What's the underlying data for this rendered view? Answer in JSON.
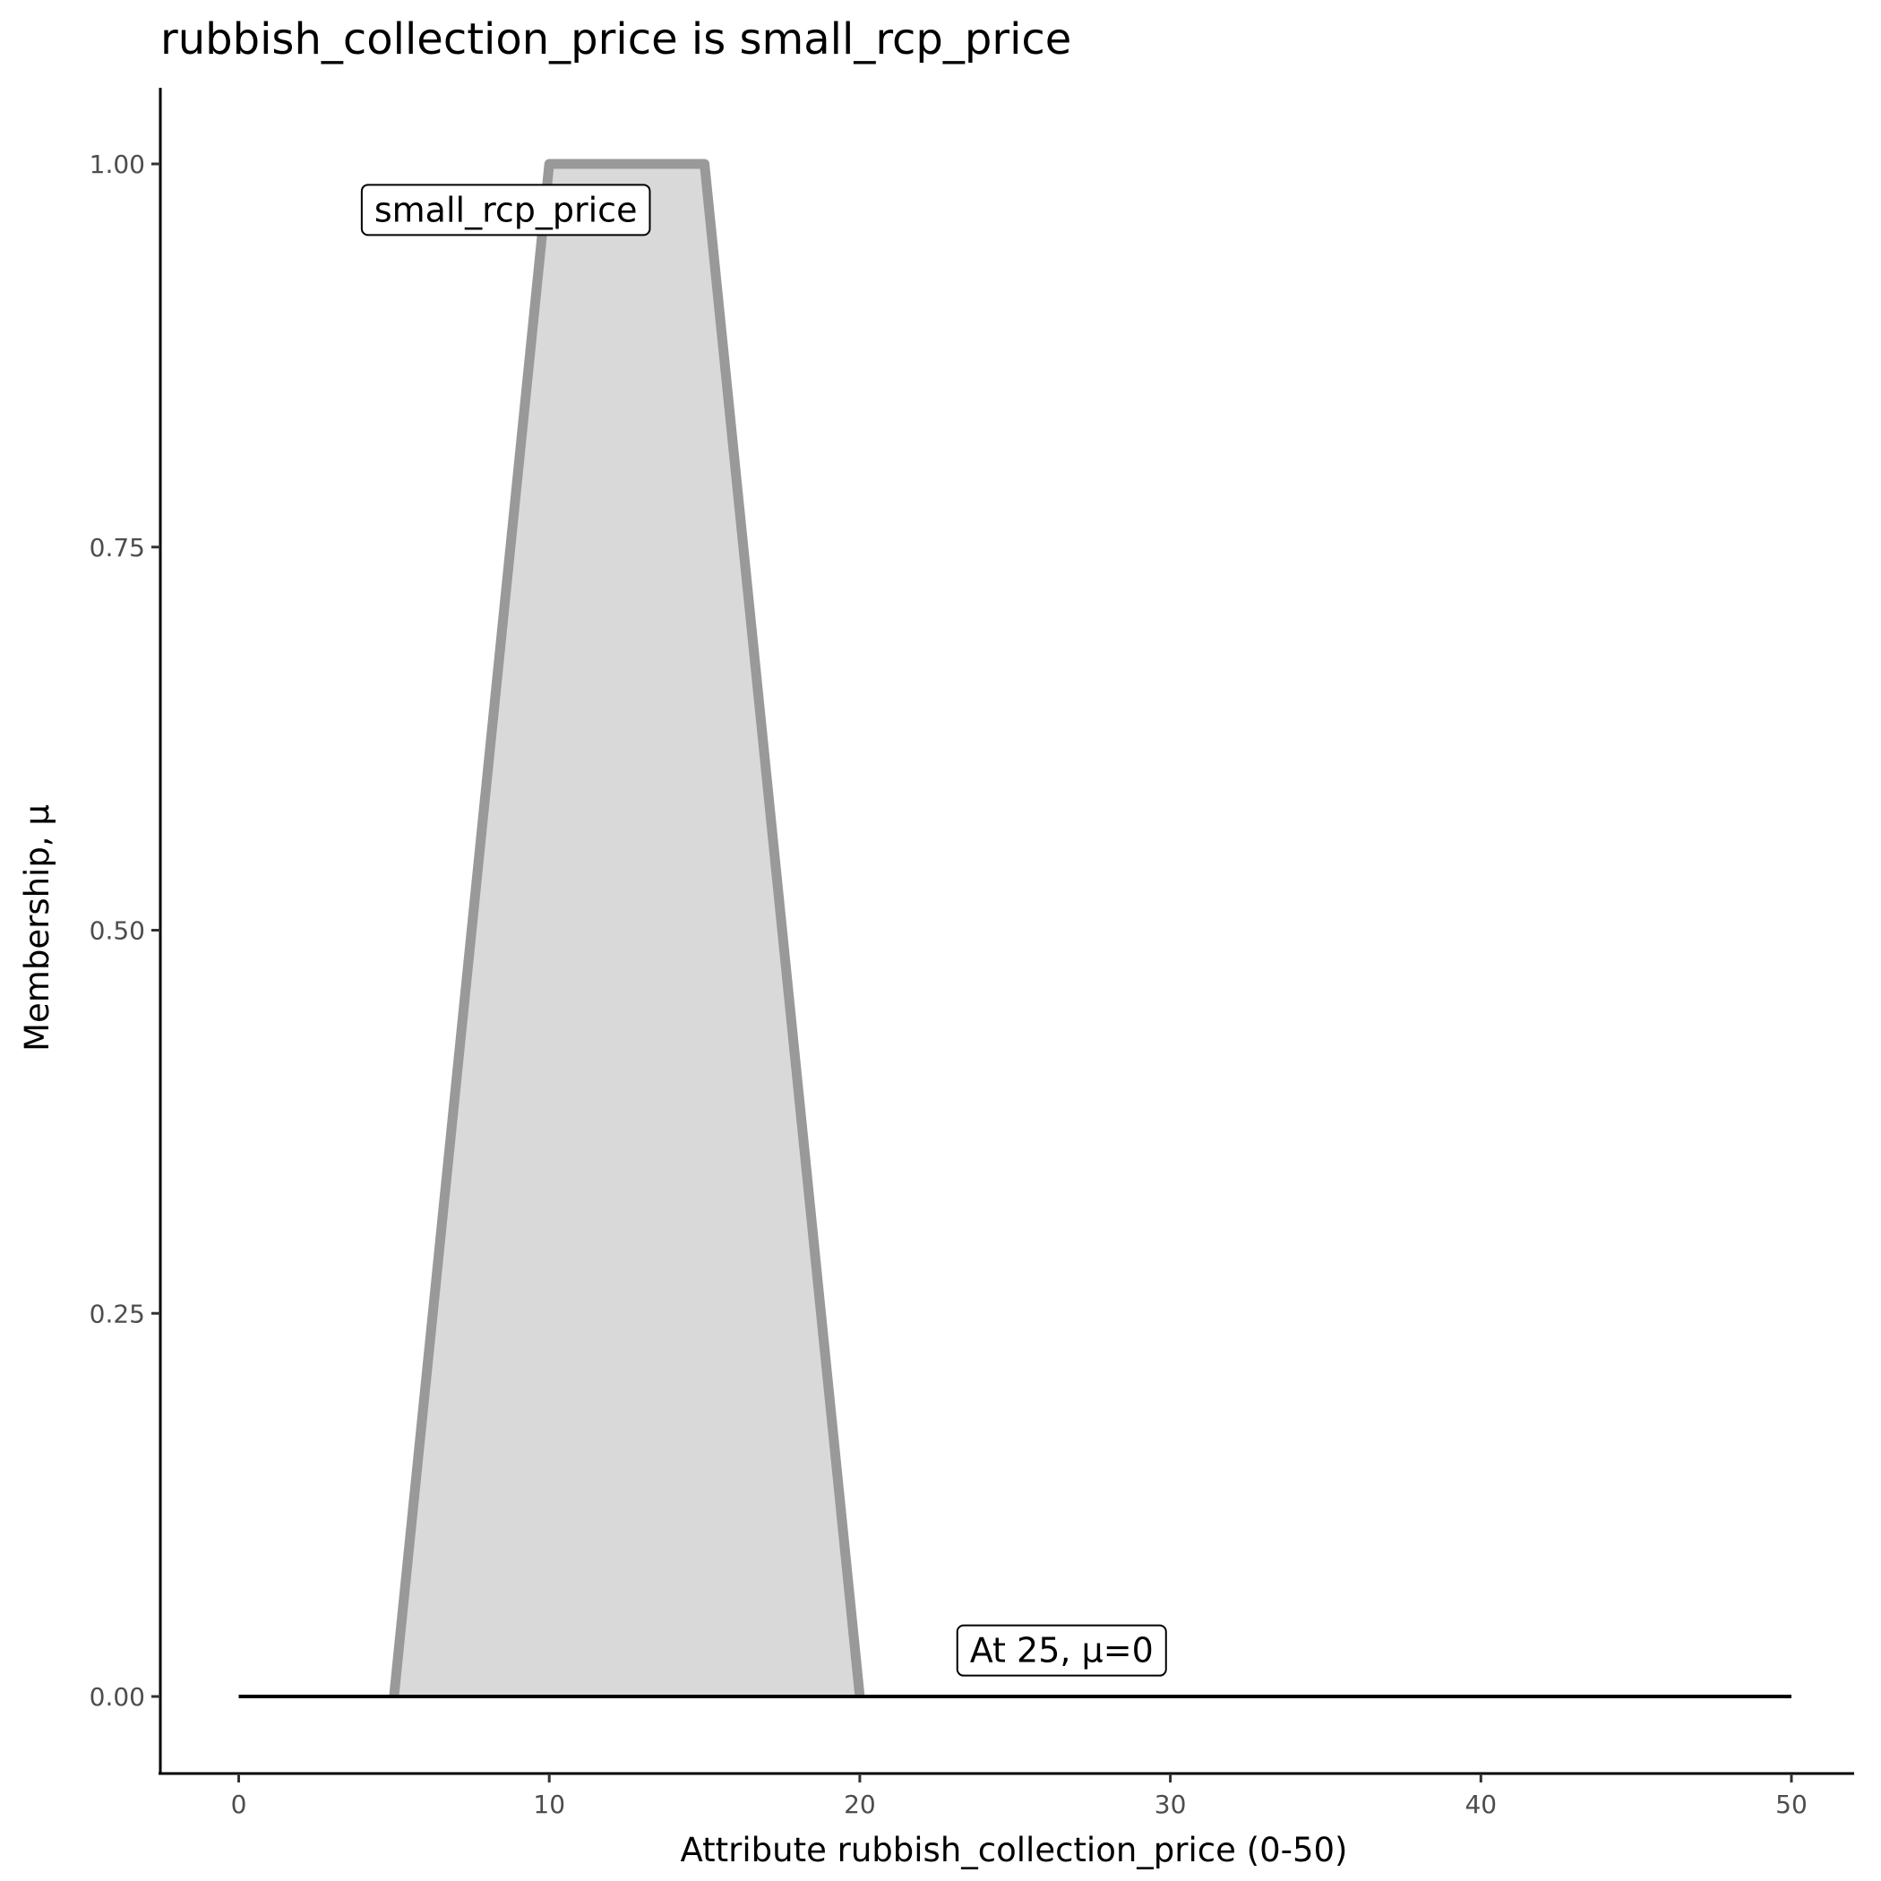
{
  "chart_data": {
    "type": "area",
    "title": "rubbish_collection_price is small_rcp_price",
    "xlabel": "Attribute rubbish_collection_price (0-50)",
    "ylabel": "Membership, μ",
    "xlim": [
      -2.5,
      52.5
    ],
    "ylim": [
      -0.05,
      1.05
    ],
    "x_ticks": [
      0,
      10,
      20,
      30,
      40,
      50
    ],
    "x_tick_labels": [
      "0",
      "10",
      "20",
      "30",
      "40",
      "50"
    ],
    "y_ticks": [
      0,
      0.25,
      0.5,
      0.75,
      1
    ],
    "y_tick_labels": [
      "0.00",
      "0.25",
      "0.50",
      "0.75",
      "1.00"
    ],
    "grid": false,
    "series": [
      {
        "name": "small_rcp_price",
        "x": [
          5,
          10,
          15,
          20
        ],
        "y": [
          0,
          1,
          1,
          0
        ],
        "line_color": "#999999",
        "fill_color": "#d9d9d9"
      }
    ],
    "reference_line": {
      "x": [
        0,
        50
      ],
      "y": [
        0,
        0
      ],
      "color": "#000000"
    },
    "annotations": [
      {
        "text": "small_rcp_price",
        "x": 8.6,
        "y": 0.97
      },
      {
        "text": "At 25, μ=0",
        "x": 26.5,
        "y": 0.03
      }
    ]
  }
}
